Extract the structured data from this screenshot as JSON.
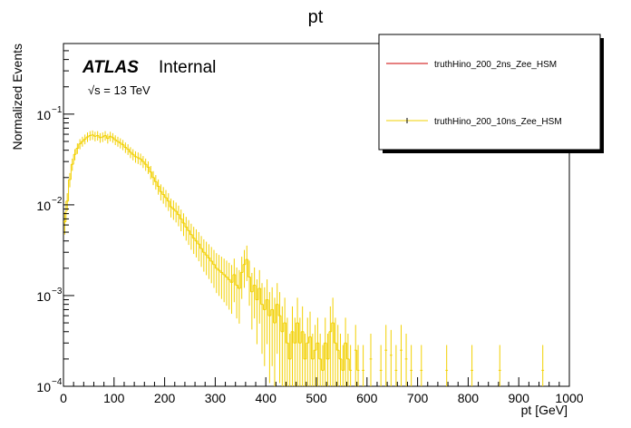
{
  "chart_data": {
    "type": "line",
    "title": "pt",
    "xlabel": "pt [GeV]",
    "ylabel": "Normalized Events",
    "xlim": [
      0,
      1000
    ],
    "ylim": [
      0.0001,
      0.6
    ],
    "y_scale": "log",
    "x_ticks": [
      "0",
      "100",
      "200",
      "300",
      "400",
      "500",
      "600",
      "700",
      "800",
      "900",
      "1000"
    ],
    "y_ticks": [
      {
        "value": 0.1,
        "base": "10",
        "exp": "−1"
      },
      {
        "value": 0.01,
        "base": "10",
        "exp": "−2"
      },
      {
        "value": 0.001,
        "base": "10",
        "exp": "−3"
      },
      {
        "value": 0.0001,
        "base": "10",
        "exp": "−4"
      }
    ],
    "annotations": {
      "atlas": "ATLAS",
      "internal": "Internal",
      "energy": "√s = 13 TeV"
    },
    "legend": {
      "placement": "top-right",
      "entries": [
        {
          "label": "truthHino_200_2ns_Zee_HSM",
          "color": "#cc0000"
        },
        {
          "label": "truthHino_200_10ns_Zee_HSM",
          "color": "#f2d000"
        }
      ]
    },
    "bin_width": 5,
    "series": [
      {
        "name": "truthHino_200_10ns_Zee_HSM",
        "color": "#f2d000",
        "bins": [
          [
            0,
            0.0065
          ],
          [
            5,
            0.011
          ],
          [
            10,
            0.019
          ],
          [
            15,
            0.028
          ],
          [
            20,
            0.036
          ],
          [
            25,
            0.042
          ],
          [
            30,
            0.047
          ],
          [
            35,
            0.05
          ],
          [
            40,
            0.053
          ],
          [
            45,
            0.056
          ],
          [
            50,
            0.058
          ],
          [
            55,
            0.059
          ],
          [
            60,
            0.057
          ],
          [
            65,
            0.058
          ],
          [
            70,
            0.055
          ],
          [
            75,
            0.056
          ],
          [
            80,
            0.058
          ],
          [
            85,
            0.054
          ],
          [
            90,
            0.057
          ],
          [
            95,
            0.055
          ],
          [
            100,
            0.052
          ],
          [
            105,
            0.05
          ],
          [
            110,
            0.048
          ],
          [
            115,
            0.046
          ],
          [
            120,
            0.043
          ],
          [
            125,
            0.041
          ],
          [
            130,
            0.038
          ],
          [
            135,
            0.036
          ],
          [
            140,
            0.034
          ],
          [
            145,
            0.033
          ],
          [
            150,
            0.032
          ],
          [
            155,
            0.03
          ],
          [
            160,
            0.028
          ],
          [
            165,
            0.026
          ],
          [
            170,
            0.023
          ],
          [
            175,
            0.02
          ],
          [
            180,
            0.018
          ],
          [
            185,
            0.016
          ],
          [
            190,
            0.014
          ],
          [
            195,
            0.013
          ],
          [
            200,
            0.012
          ],
          [
            205,
            0.011
          ],
          [
            210,
            0.0095
          ],
          [
            215,
            0.009
          ],
          [
            220,
            0.0085
          ],
          [
            225,
            0.0078
          ],
          [
            230,
            0.007
          ],
          [
            235,
            0.0063
          ],
          [
            240,
            0.0057
          ],
          [
            245,
            0.0052
          ],
          [
            250,
            0.0047
          ],
          [
            255,
            0.0043
          ],
          [
            260,
            0.004
          ],
          [
            265,
            0.0037
          ],
          [
            270,
            0.0033
          ],
          [
            275,
            0.003
          ],
          [
            280,
            0.0028
          ],
          [
            285,
            0.0026
          ],
          [
            290,
            0.0024
          ],
          [
            295,
            0.0022
          ],
          [
            300,
            0.002
          ],
          [
            305,
            0.0019
          ],
          [
            310,
            0.0018
          ],
          [
            315,
            0.0017
          ],
          [
            320,
            0.0016
          ],
          [
            325,
            0.0015
          ],
          [
            330,
            0.0014
          ],
          [
            335,
            0.0017
          ],
          [
            340,
            0.0013
          ],
          [
            345,
            0.0012
          ],
          [
            350,
            0.0018
          ],
          [
            355,
            0.0022
          ],
          [
            360,
            0.0025
          ],
          [
            365,
            0.0016
          ],
          [
            370,
            0.0011
          ],
          [
            375,
            0.0013
          ],
          [
            380,
            0.0009
          ],
          [
            385,
            0.0012
          ],
          [
            390,
            0.0008
          ],
          [
            395,
            0.0007
          ],
          [
            400,
            0.0009
          ],
          [
            405,
            0.0006
          ],
          [
            410,
            0.0007
          ],
          [
            415,
            0.0005
          ],
          [
            420,
            0.0008
          ],
          [
            425,
            0.0006
          ],
          [
            430,
            0.0004
          ],
          [
            435,
            0.0005
          ],
          [
            440,
            0.0003
          ],
          [
            445,
            0.0002
          ],
          [
            450,
            0.0004
          ],
          [
            455,
            0.0003
          ],
          [
            460,
            0.0005
          ],
          [
            465,
            0.0003
          ],
          [
            470,
            0.0004
          ],
          [
            475,
            0.0002
          ],
          [
            480,
            0.0003
          ],
          [
            485,
            0.00035
          ],
          [
            490,
            0.0002
          ],
          [
            495,
            0.00025
          ],
          [
            500,
            0.0003
          ],
          [
            505,
            0.0002
          ],
          [
            510,
            0.00015
          ],
          [
            515,
            0.0003
          ],
          [
            520,
            0.0002
          ],
          [
            525,
            0.0004
          ],
          [
            530,
            0.0005
          ],
          [
            535,
            0.0003
          ],
          [
            540,
            0.00025
          ],
          [
            545,
            0.0002
          ],
          [
            550,
            0.00015
          ],
          [
            555,
            0.0003
          ],
          [
            560,
            0.0002
          ],
          [
            565,
            0.00015
          ],
          [
            575,
            0.00025
          ],
          [
            580,
            0.00015
          ],
          [
            590,
            0.00015
          ],
          [
            605,
            0.0002
          ],
          [
            625,
            0.00015
          ],
          [
            635,
            0.00025
          ],
          [
            645,
            0.00022
          ],
          [
            655,
            0.00015
          ],
          [
            665,
            0.00025
          ],
          [
            675,
            0.0002
          ],
          [
            685,
            0.00015
          ],
          [
            705,
            0.00015
          ],
          [
            755,
            0.00015
          ],
          [
            805,
            0.00015
          ],
          [
            860,
            0.00015
          ],
          [
            945,
            0.00015
          ]
        ]
      }
    ]
  }
}
